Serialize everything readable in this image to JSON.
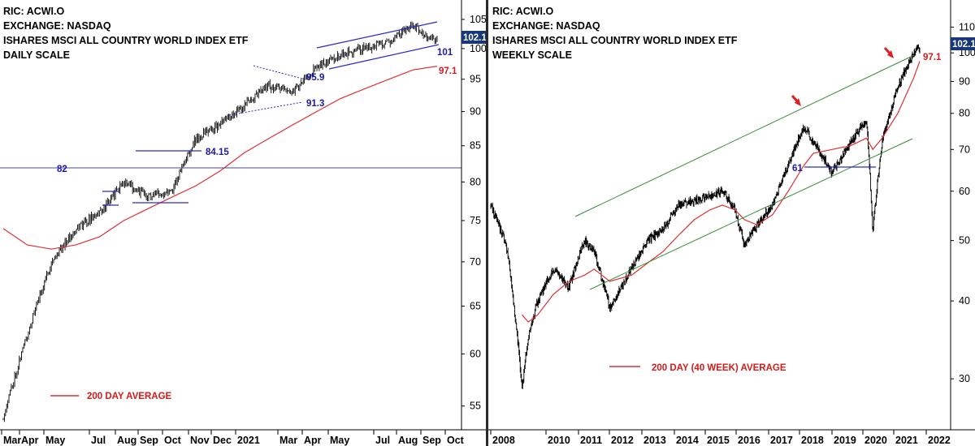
{
  "chart_data": [
    {
      "type": "line",
      "chart": "candlestick",
      "header": [
        "RIC: ACWI.O",
        "EXCHANGE: NASDAQ",
        "ISHARES MSCI ALL COUNTRY WORLD INDEX ETF",
        "DAILY SCALE"
      ],
      "y_scale": "log",
      "ylim": [
        53,
        107
      ],
      "y_ticks": [
        55,
        60,
        65,
        70,
        75,
        80,
        85,
        90,
        95,
        100,
        105
      ],
      "x_labels": [
        "Mar",
        "Apr",
        "May",
        "Jul",
        "Aug",
        "Sep",
        "Oct",
        "Nov",
        "Dec",
        "2021",
        "Mar",
        "Apr",
        "May",
        "Jul",
        "Aug",
        "Sep",
        "Oct"
      ],
      "x": [
        "2020-03",
        "2020-04",
        "2020-05",
        "2020-06",
        "2020-07",
        "2020-08",
        "2020-09",
        "2020-10",
        "2020-11",
        "2020-12",
        "2021-01",
        "2021-02",
        "2021-03",
        "2021-04",
        "2021-05",
        "2021-06",
        "2021-07",
        "2021-08",
        "2021-09"
      ],
      "series": [
        {
          "name": "ACWI",
          "color": "#000000",
          "values": [
            54,
            62,
            70,
            74,
            76,
            80,
            78,
            79,
            86,
            88,
            91,
            94,
            93,
            97,
            99,
            100,
            101,
            104,
            101
          ]
        },
        {
          "name": "200 DAY AVERAGE",
          "color": "#e03030",
          "values": [
            74,
            72,
            71.5,
            72,
            73,
            75,
            76.5,
            78,
            79.5,
            81.5,
            84,
            86,
            88,
            90,
            92,
            93.5,
            95,
            96.5,
            97.1
          ]
        }
      ],
      "legend": {
        "label": "200 DAY AVERAGE",
        "color": "#e03030"
      },
      "last_price": "102.1",
      "annotations": [
        "84.15",
        "82",
        "95.9",
        "91.3",
        "101",
        "97.1"
      ]
    },
    {
      "type": "line",
      "chart": "candlestick",
      "header": [
        "RIC: ACWI.O",
        "EXCHANGE: NASDAQ",
        "ISHARES MSCI ALL COUNTRY WORLD INDEX ETF",
        "WEEKLY SCALE"
      ],
      "y_scale": "log",
      "ylim": [
        25,
        118
      ],
      "y_ticks": [
        30,
        40,
        50,
        60,
        70,
        80,
        90,
        100,
        110
      ],
      "x_labels": [
        "2008",
        "2010",
        "2011",
        "2012",
        "2013",
        "2014",
        "2015",
        "2016",
        "2017",
        "2018",
        "2019",
        "2020",
        "2021",
        "2022"
      ],
      "x": [
        2008.0,
        2008.5,
        2009.0,
        2009.2,
        2009.5,
        2010.0,
        2010.5,
        2011.0,
        2011.3,
        2011.8,
        2012.5,
        2013.0,
        2013.5,
        2014.0,
        2014.5,
        2015.0,
        2015.4,
        2015.8,
        2016.1,
        2016.5,
        2017.0,
        2017.5,
        2018.0,
        2018.3,
        2018.9,
        2019.5,
        2020.0,
        2020.2,
        2020.5,
        2021.0,
        2021.5,
        2021.7
      ],
      "series": [
        {
          "name": "ACWI",
          "color": "#000000",
          "values": [
            57,
            49,
            29,
            35,
            40,
            45,
            42,
            50,
            48,
            39,
            45,
            50,
            52,
            57,
            58,
            59,
            60,
            56,
            49,
            53,
            57,
            66,
            76,
            72,
            64,
            72,
            78,
            52,
            72,
            88,
            100,
            102
          ]
        },
        {
          "name": "200 DAY (40 WEEK) AVERAGE",
          "color": "#e03030",
          "values": [
            null,
            null,
            38,
            37,
            38,
            41,
            43,
            44,
            45,
            43,
            44,
            46,
            48,
            51,
            54,
            56,
            57,
            56,
            54,
            53,
            55,
            60,
            66,
            69,
            70,
            71,
            73,
            70,
            73,
            80,
            91,
            97
          ]
        }
      ],
      "legend": {
        "label": "200 DAY (40 WEEK) AVERAGE",
        "color": "#e03030"
      },
      "last_price": "102.1",
      "annotations": [
        "61",
        "97.1"
      ]
    }
  ]
}
